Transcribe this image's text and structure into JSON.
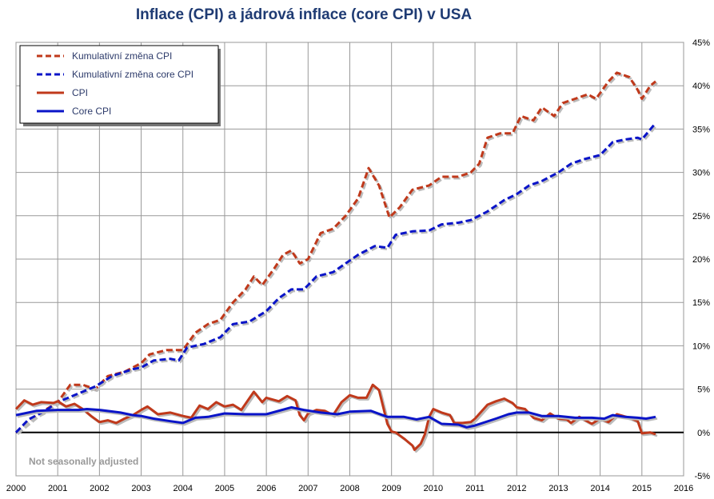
{
  "chart_data": {
    "type": "line",
    "title": "Inflace (CPI) a jádrová inflace (core CPI) v USA",
    "annotation": "Not seasonally adjusted",
    "xlim": [
      2000,
      2016
    ],
    "ylim": [
      -5,
      45
    ],
    "x_ticks": [
      "2000",
      "2001",
      "2002",
      "2003",
      "2004",
      "2005",
      "2006",
      "2007",
      "2008",
      "2009",
      "2010",
      "2011",
      "2012",
      "2013",
      "2014",
      "2015",
      "2016"
    ],
    "y_ticks": [
      "-5%",
      "0%",
      "5%",
      "10%",
      "15%",
      "20%",
      "25%",
      "30%",
      "35%",
      "40%",
      "45%"
    ],
    "grid": true,
    "legend_position": "top-left",
    "series": [
      {
        "name": "Kumulativní změna CPI",
        "color": "#c0391b",
        "dash": true,
        "points": [
          [
            2000,
            0
          ],
          [
            2000.5,
            2
          ],
          [
            2001,
            3.5
          ],
          [
            2001.3,
            5.5
          ],
          [
            2001.6,
            5.5
          ],
          [
            2001.9,
            5
          ],
          [
            2002.2,
            6.5
          ],
          [
            2002.6,
            7
          ],
          [
            2003,
            8
          ],
          [
            2003.2,
            9
          ],
          [
            2003.6,
            9.5
          ],
          [
            2004,
            9.5
          ],
          [
            2004.3,
            11.5
          ],
          [
            2004.6,
            12.5
          ],
          [
            2004.9,
            13
          ],
          [
            2005.2,
            15
          ],
          [
            2005.5,
            16.5
          ],
          [
            2005.7,
            18
          ],
          [
            2005.9,
            17
          ],
          [
            2006.2,
            19
          ],
          [
            2006.4,
            20.5
          ],
          [
            2006.6,
            21
          ],
          [
            2006.8,
            19.5
          ],
          [
            2007,
            20
          ],
          [
            2007.3,
            23
          ],
          [
            2007.6,
            23.5
          ],
          [
            2007.9,
            25
          ],
          [
            2008.2,
            27
          ],
          [
            2008.45,
            30.5
          ],
          [
            2008.7,
            28.5
          ],
          [
            2008.95,
            24.8
          ],
          [
            2009.2,
            26
          ],
          [
            2009.5,
            28
          ],
          [
            2009.9,
            28.5
          ],
          [
            2010.2,
            29.5
          ],
          [
            2010.6,
            29.5
          ],
          [
            2010.9,
            30
          ],
          [
            2011.1,
            31
          ],
          [
            2011.3,
            34
          ],
          [
            2011.6,
            34.5
          ],
          [
            2011.9,
            34.5
          ],
          [
            2012.1,
            36.5
          ],
          [
            2012.4,
            36
          ],
          [
            2012.6,
            37.5
          ],
          [
            2012.9,
            36.5
          ],
          [
            2013.1,
            38
          ],
          [
            2013.4,
            38.5
          ],
          [
            2013.7,
            39
          ],
          [
            2013.9,
            38.5
          ],
          [
            2014.2,
            40.5
          ],
          [
            2014.4,
            41.5
          ],
          [
            2014.7,
            41
          ],
          [
            2014.9,
            39.5
          ],
          [
            2015,
            38.5
          ],
          [
            2015.2,
            40
          ],
          [
            2015.33,
            40.5
          ]
        ]
      },
      {
        "name": "Kumulativní změna core CPI",
        "color": "#0a14c8",
        "dash": true,
        "points": [
          [
            2000,
            0
          ],
          [
            2000.3,
            1.5
          ],
          [
            2000.7,
            2.5
          ],
          [
            2001,
            3.5
          ],
          [
            2001.5,
            4.5
          ],
          [
            2001.9,
            5.3
          ],
          [
            2002.3,
            6.5
          ],
          [
            2002.8,
            7.3
          ],
          [
            2003,
            7.5
          ],
          [
            2003.3,
            8.3
          ],
          [
            2003.7,
            8.5
          ],
          [
            2003.9,
            8.3
          ],
          [
            2004.1,
            9.8
          ],
          [
            2004.5,
            10.2
          ],
          [
            2004.9,
            11
          ],
          [
            2005.2,
            12.5
          ],
          [
            2005.6,
            12.8
          ],
          [
            2006,
            14
          ],
          [
            2006.3,
            15.5
          ],
          [
            2006.6,
            16.5
          ],
          [
            2006.9,
            16.5
          ],
          [
            2007.2,
            18
          ],
          [
            2007.6,
            18.5
          ],
          [
            2007.9,
            19.5
          ],
          [
            2008.2,
            20.5
          ],
          [
            2008.6,
            21.5
          ],
          [
            2008.9,
            21.3
          ],
          [
            2009.1,
            22.8
          ],
          [
            2009.5,
            23.2
          ],
          [
            2009.9,
            23.3
          ],
          [
            2010.2,
            24
          ],
          [
            2010.6,
            24.2
          ],
          [
            2010.9,
            24.5
          ],
          [
            2011.3,
            25.5
          ],
          [
            2011.7,
            26.8
          ],
          [
            2012,
            27.5
          ],
          [
            2012.3,
            28.5
          ],
          [
            2012.6,
            29
          ],
          [
            2013,
            30
          ],
          [
            2013.3,
            31
          ],
          [
            2013.6,
            31.5
          ],
          [
            2014,
            32
          ],
          [
            2014.3,
            33.5
          ],
          [
            2014.6,
            33.8
          ],
          [
            2014.9,
            34
          ],
          [
            2015,
            33.8
          ],
          [
            2015.33,
            35.7
          ]
        ]
      },
      {
        "name": "CPI",
        "color": "#c0391b",
        "dash": false,
        "points": [
          [
            2000,
            2.7
          ],
          [
            2000.2,
            3.7
          ],
          [
            2000.4,
            3.2
          ],
          [
            2000.6,
            3.5
          ],
          [
            2000.9,
            3.4
          ],
          [
            2001,
            3.6
          ],
          [
            2001.2,
            3
          ],
          [
            2001.4,
            3.3
          ],
          [
            2001.6,
            2.7
          ],
          [
            2001.8,
            1.9
          ],
          [
            2002,
            1.2
          ],
          [
            2002.2,
            1.4
          ],
          [
            2002.4,
            1.1
          ],
          [
            2002.6,
            1.6
          ],
          [
            2002.8,
            2
          ],
          [
            2003,
            2.6
          ],
          [
            2003.15,
            3
          ],
          [
            2003.4,
            2.1
          ],
          [
            2003.7,
            2.3
          ],
          [
            2004,
            1.9
          ],
          [
            2004.2,
            1.7
          ],
          [
            2004.4,
            3.1
          ],
          [
            2004.6,
            2.7
          ],
          [
            2004.8,
            3.5
          ],
          [
            2005,
            3
          ],
          [
            2005.2,
            3.2
          ],
          [
            2005.4,
            2.6
          ],
          [
            2005.7,
            4.7
          ],
          [
            2005.9,
            3.5
          ],
          [
            2006,
            4
          ],
          [
            2006.3,
            3.6
          ],
          [
            2006.5,
            4.2
          ],
          [
            2006.7,
            3.7
          ],
          [
            2006.8,
            2
          ],
          [
            2006.9,
            1.4
          ],
          [
            2007,
            2.2
          ],
          [
            2007.2,
            2.6
          ],
          [
            2007.4,
            2.5
          ],
          [
            2007.6,
            2
          ],
          [
            2007.8,
            3.5
          ],
          [
            2008,
            4.3
          ],
          [
            2008.2,
            4
          ],
          [
            2008.4,
            4
          ],
          [
            2008.55,
            5.5
          ],
          [
            2008.7,
            4.9
          ],
          [
            2008.9,
            1
          ],
          [
            2009,
            0.1
          ],
          [
            2009.1,
            0
          ],
          [
            2009.3,
            -0.7
          ],
          [
            2009.5,
            -1.5
          ],
          [
            2009.55,
            -2
          ],
          [
            2009.7,
            -1.3
          ],
          [
            2009.8,
            -0.2
          ],
          [
            2009.9,
            1.8
          ],
          [
            2010,
            2.7
          ],
          [
            2010.2,
            2.3
          ],
          [
            2010.4,
            2
          ],
          [
            2010.5,
            1.1
          ],
          [
            2010.7,
            1.1
          ],
          [
            2010.9,
            1.2
          ],
          [
            2011,
            1.6
          ],
          [
            2011.3,
            3.2
          ],
          [
            2011.5,
            3.6
          ],
          [
            2011.7,
            3.9
          ],
          [
            2011.9,
            3.4
          ],
          [
            2012,
            2.9
          ],
          [
            2012.2,
            2.7
          ],
          [
            2012.4,
            1.7
          ],
          [
            2012.6,
            1.4
          ],
          [
            2012.8,
            2.2
          ],
          [
            2013,
            1.6
          ],
          [
            2013.2,
            1.5
          ],
          [
            2013.3,
            1.1
          ],
          [
            2013.5,
            1.8
          ],
          [
            2013.8,
            1
          ],
          [
            2014,
            1.6
          ],
          [
            2014.2,
            1.2
          ],
          [
            2014.4,
            2.1
          ],
          [
            2014.7,
            1.7
          ],
          [
            2014.9,
            1.3
          ],
          [
            2015,
            -0.1
          ],
          [
            2015.2,
            0
          ],
          [
            2015.33,
            -0.2
          ]
        ]
      },
      {
        "name": "Core CPI",
        "color": "#0a14c8",
        "dash": false,
        "points": [
          [
            2000,
            2
          ],
          [
            2000.5,
            2.5
          ],
          [
            2001,
            2.6
          ],
          [
            2001.5,
            2.6
          ],
          [
            2001.7,
            2.7
          ],
          [
            2002,
            2.6
          ],
          [
            2002.5,
            2.3
          ],
          [
            2002.8,
            2
          ],
          [
            2003,
            1.9
          ],
          [
            2003.3,
            1.6
          ],
          [
            2003.7,
            1.3
          ],
          [
            2004,
            1.1
          ],
          [
            2004.3,
            1.7
          ],
          [
            2004.6,
            1.8
          ],
          [
            2005,
            2.2
          ],
          [
            2005.5,
            2.1
          ],
          [
            2006,
            2.1
          ],
          [
            2006.6,
            2.9
          ],
          [
            2006.9,
            2.6
          ],
          [
            2007.3,
            2.3
          ],
          [
            2007.7,
            2.1
          ],
          [
            2008,
            2.4
          ],
          [
            2008.5,
            2.5
          ],
          [
            2008.9,
            1.8
          ],
          [
            2009.3,
            1.8
          ],
          [
            2009.6,
            1.5
          ],
          [
            2009.9,
            1.8
          ],
          [
            2010.2,
            1
          ],
          [
            2010.6,
            0.9
          ],
          [
            2010.8,
            0.6
          ],
          [
            2011,
            0.8
          ],
          [
            2011.5,
            1.6
          ],
          [
            2011.8,
            2.1
          ],
          [
            2012,
            2.3
          ],
          [
            2012.3,
            2.3
          ],
          [
            2012.6,
            1.9
          ],
          [
            2013,
            1.9
          ],
          [
            2013.4,
            1.7
          ],
          [
            2013.8,
            1.7
          ],
          [
            2014.1,
            1.6
          ],
          [
            2014.3,
            2
          ],
          [
            2014.6,
            1.8
          ],
          [
            2014.9,
            1.7
          ],
          [
            2015.1,
            1.6
          ],
          [
            2015.33,
            1.8
          ]
        ]
      }
    ]
  }
}
